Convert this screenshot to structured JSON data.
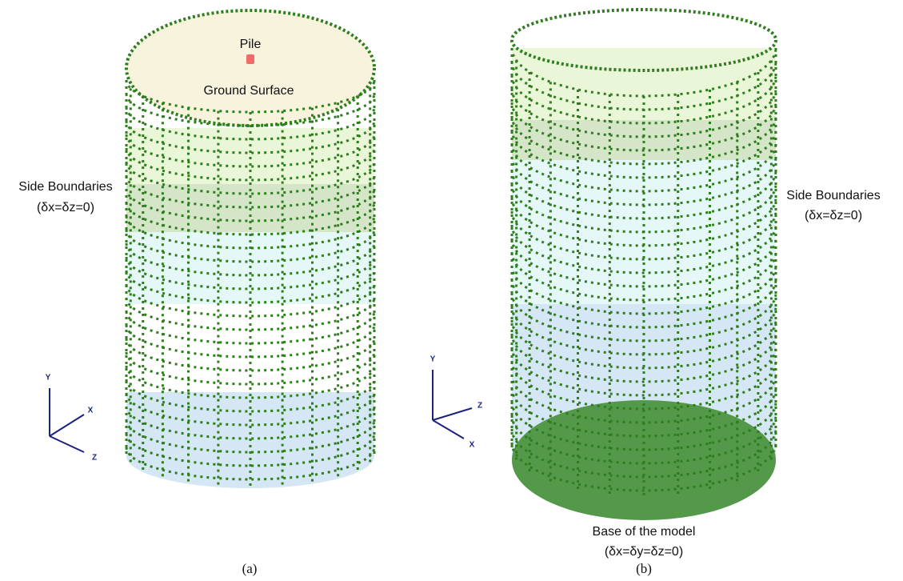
{
  "figure_a": {
    "caption": "(a)",
    "pile_label": "Pile",
    "surface_label": "Ground Surface",
    "side_label": "Side Boundaries",
    "side_condition": "(δx=δz=0)",
    "axes": [
      "Y",
      "X",
      "Z"
    ]
  },
  "figure_b": {
    "caption": "(b)",
    "side_label": "Side Boundaries",
    "side_condition": "(δx=δz=0)",
    "base_label": "Base of the model",
    "base_condition": "(δx=δy=δz=0)",
    "axes": [
      "Y",
      "Z",
      "X"
    ]
  }
}
